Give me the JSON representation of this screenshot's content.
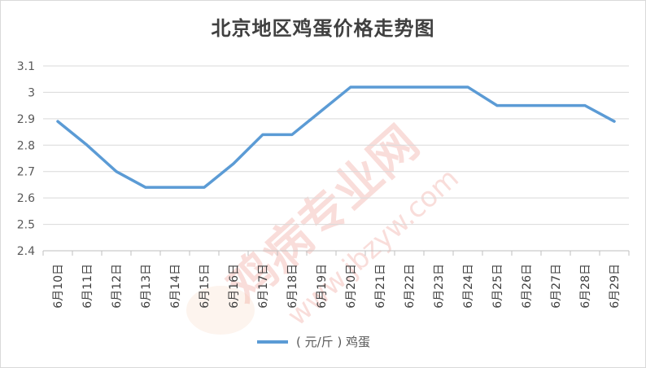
{
  "chart_data": {
    "type": "line",
    "title": "北京地区鸡蛋价格走势图",
    "xlabel": "",
    "ylabel": "",
    "categories": [
      "6月10日",
      "6月11日",
      "6月12日",
      "6月13日",
      "6月14日",
      "6月15日",
      "6月16日",
      "6月17日",
      "6月18日",
      "6月19日",
      "6月20日",
      "6月21日",
      "6月22日",
      "6月23日",
      "6月24日",
      "6月25日",
      "6月26日",
      "6月27日",
      "6月28日",
      "6月29日"
    ],
    "series": [
      {
        "name": "( 元/斤 ) 鸡蛋",
        "color": "#5b9bd5",
        "values": [
          2.89,
          2.8,
          2.7,
          2.64,
          2.64,
          2.64,
          2.73,
          2.84,
          2.84,
          2.93,
          3.02,
          3.02,
          3.02,
          3.02,
          3.02,
          2.95,
          2.95,
          2.95,
          2.95,
          2.89
        ]
      }
    ],
    "ylim": [
      2.4,
      3.1
    ],
    "yticks": [
      "2.4",
      "2.5",
      "2.6",
      "2.7",
      "2.8",
      "2.9",
      "3",
      "3.1"
    ],
    "grid": true,
    "legend_position": "bottom"
  },
  "watermark": {
    "text_main": "鸡病专业网",
    "text_url": "www.jbzyw.com"
  }
}
